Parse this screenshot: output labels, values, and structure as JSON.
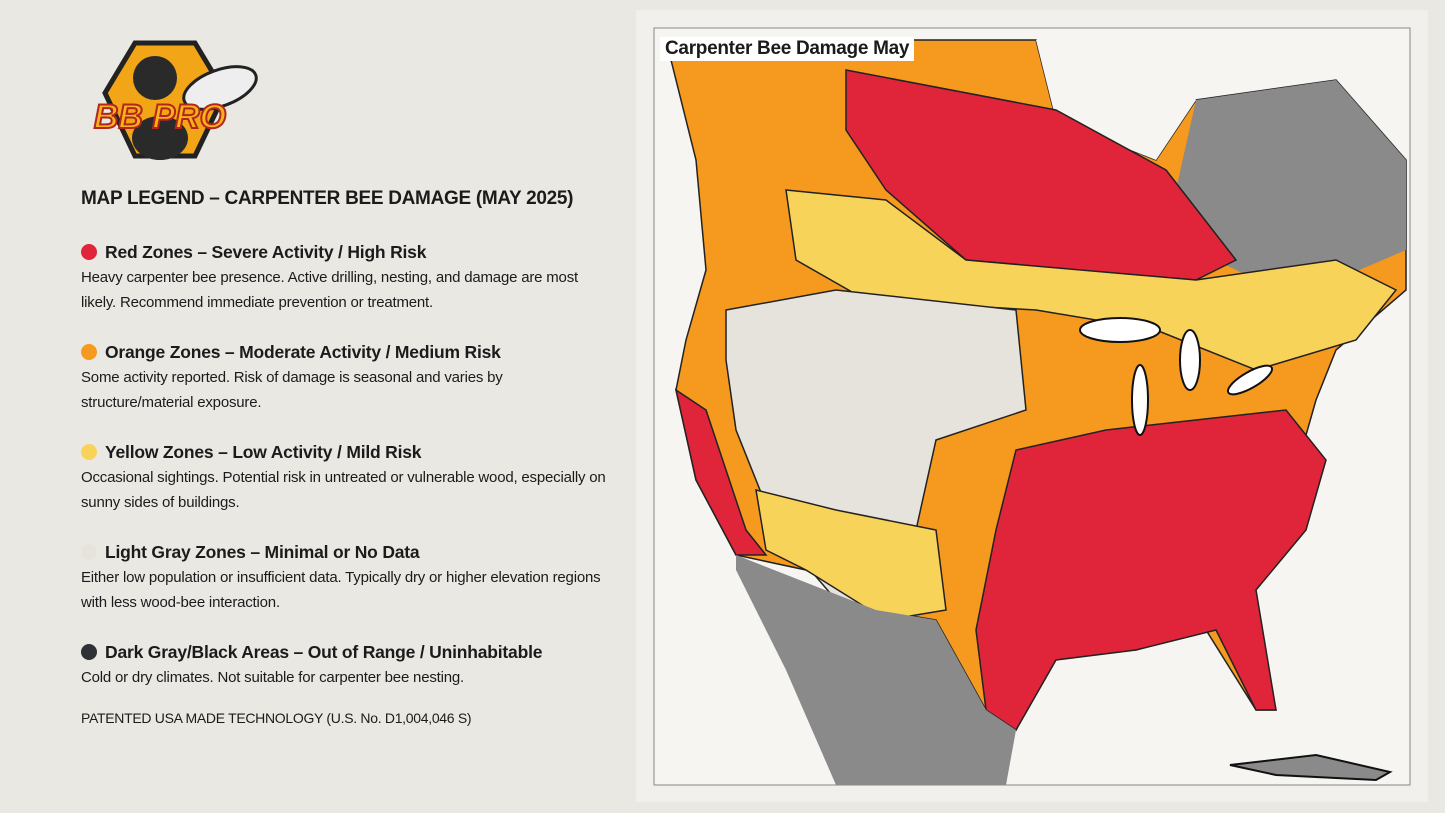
{
  "logo": {
    "text": "BB PRO"
  },
  "legend": {
    "title": "MAP LEGEND – CARPENTER BEE DAMAGE (MAY 2025)",
    "items": [
      {
        "label": "Red Zones – Severe Activity / High Risk",
        "description": "Heavy carpenter bee presence. Active drilling, nesting, and damage are most likely. Recommend immediate prevention or treatment.",
        "color": "#e0243a"
      },
      {
        "label": "Orange Zones – Moderate Activity / Medium Risk",
        "description": "Some activity reported. Risk of damage is seasonal and varies by structure/material exposure.",
        "color": "#f59a1e"
      },
      {
        "label": "Yellow Zones – Low Activity / Mild Risk",
        "description": "Occasional sightings. Potential risk in untreated or vulnerable wood, especially on sunny sides of buildings.",
        "color": "#f8d35a"
      },
      {
        "label": "Light Gray Zones – Minimal or No Data",
        "description": "Either low population or insufficient data. Typically dry or higher elevation regions with less wood-bee interaction.",
        "color": "#e6e3dc"
      },
      {
        "label": "Dark Gray/Black Areas – Out of Range / Uninhabitable",
        "description": "Cold or dry climates. Not suitable for carpenter bee nesting.",
        "color": "#2e3136"
      }
    ]
  },
  "footer": "PATENTED USA MADE TECHNOLOGY (U.S. No. D1,004,046 S)",
  "map": {
    "title": "Carpenter Bee Damage May"
  }
}
